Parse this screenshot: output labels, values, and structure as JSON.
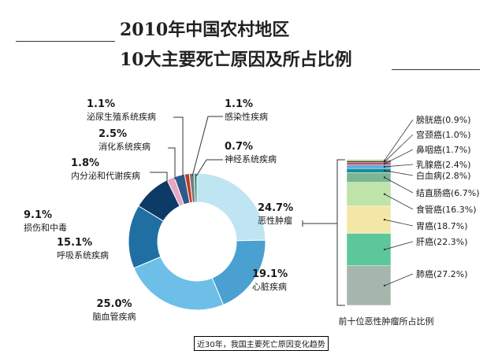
{
  "title": {
    "line1": "2010年中国农村地区",
    "line2": "10大主要死亡原因及所占比例"
  },
  "caption": "近30年，我国主要死亡原因变化趋势",
  "colors": {
    "cancer": "#bfe4f2",
    "heart": "#4aa0d0",
    "cerebrovascular": "#6dbfe8",
    "respiratory": "#1f6fa3",
    "injury": "#0d3a66",
    "endocrine": "#e8a5c4",
    "digestive": "#2d5a8a",
    "urinary": "#c0392b",
    "infectious": "#7a7a7a",
    "nervous": "#2a9a86"
  },
  "chart_data": [
    {
      "type": "pie",
      "variant": "donut",
      "slices": [
        {
          "key": "cancer",
          "label": "恶性肿瘤",
          "pct": "24.7%",
          "value": 24.7
        },
        {
          "key": "heart",
          "label": "心脏疾病",
          "pct": "19.1%",
          "value": 19.1
        },
        {
          "key": "cerebrovascular",
          "label": "脑血管疾病",
          "pct": "25.0%",
          "value": 25.0
        },
        {
          "key": "respiratory",
          "label": "呼吸系统疾病",
          "pct": "15.1%",
          "value": 15.1
        },
        {
          "key": "injury",
          "label": "损伤和中毒",
          "pct": "9.1%",
          "value": 9.1
        },
        {
          "key": "endocrine",
          "label": "内分泌和代谢疾病",
          "pct": "1.8%",
          "value": 1.8
        },
        {
          "key": "digestive",
          "label": "消化系统疾病",
          "pct": "2.5%",
          "value": 2.5
        },
        {
          "key": "urinary",
          "label": "泌尿生殖系统疾病",
          "pct": "1.1%",
          "value": 1.1
        },
        {
          "key": "infectious",
          "label": "感染性疾病",
          "pct": "1.1%",
          "value": 1.1
        },
        {
          "key": "nervous",
          "label": "神经系统疾病",
          "pct": "0.7%",
          "value": 0.7
        }
      ]
    },
    {
      "type": "bar",
      "variant": "stacked-100",
      "xlabel": "前十位恶性肿瘤所占比例",
      "segments": [
        {
          "label": "肺癌(27.2%)",
          "value": 27.2,
          "color": "#a7b6ad"
        },
        {
          "label": "肝癌(22.3%)",
          "value": 22.3,
          "color": "#5cc79a"
        },
        {
          "label": "胃癌(18.7%)",
          "value": 18.7,
          "color": "#f4e6a5"
        },
        {
          "label": "食管癌(16.3%)",
          "value": 16.3,
          "color": "#bfe3a8"
        },
        {
          "label": "结直肠癌(6.7%)",
          "value": 6.7,
          "color": "#7ab594"
        },
        {
          "label": "白血病(2.8%)",
          "value": 2.8,
          "color": "#1b8a9c"
        },
        {
          "label": "乳腺癌(2.4%)",
          "value": 2.4,
          "color": "#4fb3d9"
        },
        {
          "label": "鼻咽癌(1.7%)",
          "value": 1.7,
          "color": "#d8407a"
        },
        {
          "label": "宫颈癌(1.0%)",
          "value": 1.0,
          "color": "#2d2d2d"
        },
        {
          "label": "膀胱癌(0.9%)",
          "value": 0.9,
          "color": "#7fbf3a"
        }
      ]
    }
  ]
}
